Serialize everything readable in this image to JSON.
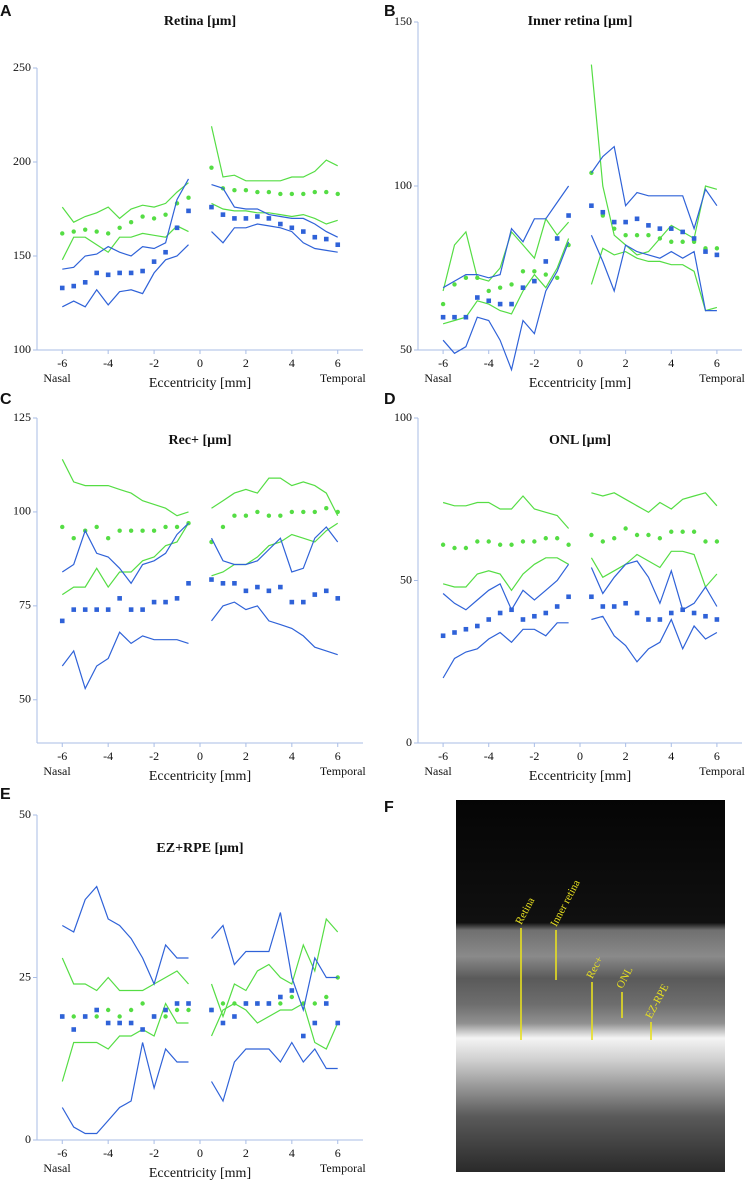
{
  "chart_data": [
    {
      "type": "line",
      "panel_label": "A",
      "title": "Retina [µm]",
      "x_label": "Eccentricity [mm]",
      "left_label": "Nasal",
      "right_label": "Temporal",
      "x": [
        -6,
        -5.5,
        -5,
        -4.5,
        -4,
        -3.5,
        -3,
        -2.5,
        -2,
        -1.5,
        -1,
        -0.5,
        0,
        0.5,
        1,
        1.5,
        2,
        2.5,
        3,
        3.5,
        4,
        4.5,
        5,
        5.5,
        6
      ],
      "xlim": [
        -7.1,
        7.1
      ],
      "xticks": [
        -6,
        -4,
        -2,
        0,
        2,
        4,
        6
      ],
      "ylim": [
        100,
        250
      ],
      "yticks": [
        100,
        150,
        200,
        250
      ],
      "series": [
        {
          "color": "#55dd44",
          "style": "line",
          "values": [
            176,
            168,
            171,
            173,
            176,
            170,
            175,
            177,
            176,
            178,
            184,
            189,
            null,
            219,
            192,
            193,
            190,
            190,
            190,
            190,
            192,
            192,
            195,
            201,
            198
          ]
        },
        {
          "color": "#55dd44",
          "style": "line",
          "values": [
            148,
            160,
            160,
            156,
            152,
            160,
            160,
            162,
            161,
            160,
            166,
            163,
            null,
            178,
            175,
            174,
            174,
            173,
            173,
            172,
            171,
            172,
            170,
            167,
            169
          ]
        },
        {
          "color": "#55dd44",
          "style": "dots",
          "values": [
            162,
            163,
            164,
            163,
            162,
            165,
            168,
            171,
            170,
            172,
            178,
            181,
            null,
            197,
            186,
            185,
            185,
            184,
            184,
            183,
            183,
            183,
            184,
            184,
            183
          ]
        },
        {
          "color": "#2f62d8",
          "style": "line",
          "values": [
            143,
            144,
            150,
            151,
            155,
            152,
            150,
            155,
            154,
            157,
            180,
            191,
            null,
            188,
            186,
            176,
            175,
            175,
            172,
            171,
            170,
            170,
            167,
            163,
            160
          ]
        },
        {
          "color": "#2f62d8",
          "style": "line",
          "values": [
            123,
            126,
            123,
            132,
            124,
            131,
            132,
            130,
            141,
            148,
            150,
            156,
            null,
            163,
            157,
            165,
            165,
            167,
            166,
            165,
            163,
            157,
            154,
            153,
            152
          ]
        },
        {
          "color": "#2f62d8",
          "style": "squares",
          "values": [
            133,
            134,
            136,
            141,
            140,
            141,
            141,
            142,
            147,
            152,
            165,
            174,
            null,
            176,
            172,
            170,
            170,
            171,
            170,
            167,
            165,
            163,
            160,
            159,
            156
          ]
        }
      ]
    },
    {
      "type": "line",
      "panel_label": "B",
      "title": "Inner retina [µm]",
      "x_label": "Eccentricity [mm]",
      "left_label": "Nasal",
      "right_label": "Temporal",
      "x": [
        -6,
        -5.5,
        -5,
        -4.5,
        -4,
        -3.5,
        -3,
        -2.5,
        -2,
        -1.5,
        -1,
        -0.5,
        0,
        0.5,
        1,
        1.5,
        2,
        2.5,
        3,
        3.5,
        4,
        4.5,
        5,
        5.5,
        6
      ],
      "xlim": [
        -7.1,
        7.1
      ],
      "xticks": [
        -6,
        -4,
        -2,
        0,
        2,
        4,
        6
      ],
      "ylim": [
        50,
        150
      ],
      "yticks": [
        50,
        100,
        150
      ],
      "series": [
        {
          "color": "#55dd44",
          "style": "line",
          "values": [
            68,
            82,
            86,
            72,
            71,
            75,
            86,
            82,
            78,
            90,
            85,
            89,
            null,
            137,
            100,
            85,
            82,
            79,
            80,
            84,
            88,
            86,
            84,
            100,
            99
          ]
        },
        {
          "color": "#55dd44",
          "style": "line",
          "values": [
            58,
            59,
            60,
            65,
            64,
            62,
            61,
            68,
            73,
            69,
            75,
            84,
            null,
            70,
            81,
            79,
            80,
            78,
            77,
            77,
            76,
            76,
            74,
            62,
            63
          ]
        },
        {
          "color": "#55dd44",
          "style": "dots",
          "values": [
            64,
            70,
            72,
            72,
            68,
            69,
            70,
            74,
            74,
            73,
            72,
            82,
            null,
            104,
            91,
            87,
            85,
            85,
            85,
            84,
            83,
            83,
            83,
            81,
            81
          ]
        },
        {
          "color": "#2f62d8",
          "style": "line",
          "values": [
            69,
            71,
            73,
            73,
            72,
            73,
            87,
            83,
            90,
            90,
            95,
            100,
            null,
            104,
            109,
            112,
            94,
            98,
            97,
            97,
            97,
            97,
            87,
            99,
            94
          ]
        },
        {
          "color": "#2f62d8",
          "style": "line",
          "values": [
            53,
            49,
            51,
            60,
            59,
            53,
            44,
            59,
            55,
            68,
            74,
            83,
            null,
            85,
            77,
            68,
            82,
            80,
            79,
            78,
            80,
            78,
            80,
            62,
            62
          ]
        },
        {
          "color": "#2f62d8",
          "style": "squares",
          "values": [
            60,
            60,
            60,
            66,
            65,
            64,
            64,
            69,
            71,
            77,
            84,
            91,
            null,
            94,
            92,
            89,
            89,
            90,
            88,
            87,
            87,
            86,
            84,
            80,
            79
          ]
        }
      ]
    },
    {
      "type": "line",
      "panel_label": "C",
      "title": "Rec+ [µm]",
      "x_label": "Eccentricity [mm]",
      "left_label": "Nasal",
      "right_label": "Temporal",
      "x": [
        -6,
        -5.5,
        -5,
        -4.5,
        -4,
        -3.5,
        -3,
        -2.5,
        -2,
        -1.5,
        -1,
        -0.5,
        0,
        0.5,
        1,
        1.5,
        2,
        2.5,
        3,
        3.5,
        4,
        4.5,
        5,
        5.5,
        6
      ],
      "xlim": [
        -7.1,
        7.1
      ],
      "xticks": [
        -6,
        -4,
        -2,
        0,
        2,
        4,
        6
      ],
      "ylim": [
        38.5,
        125
      ],
      "yticks": [
        50,
        75,
        100,
        125
      ],
      "series": [
        {
          "color": "#55dd44",
          "style": "line",
          "values": [
            114,
            108,
            107,
            107,
            107,
            106,
            105,
            103,
            102,
            101,
            99,
            100,
            null,
            101,
            103,
            105,
            106,
            105,
            109,
            109,
            107,
            108,
            107,
            105,
            99
          ]
        },
        {
          "color": "#55dd44",
          "style": "line",
          "values": [
            78,
            80,
            80,
            85,
            80,
            84,
            84,
            87,
            88,
            91,
            92,
            97,
            null,
            83,
            84,
            86,
            86,
            88,
            91,
            92,
            94,
            93,
            92,
            95,
            97
          ]
        },
        {
          "color": "#55dd44",
          "style": "dots",
          "values": [
            96,
            93,
            95,
            96,
            93,
            95,
            95,
            95,
            95,
            96,
            96,
            97,
            null,
            92,
            96,
            99,
            99,
            100,
            99,
            99,
            100,
            100,
            100,
            101,
            100
          ]
        },
        {
          "color": "#2f62d8",
          "style": "line",
          "values": [
            84,
            86,
            95,
            89,
            88,
            85,
            81,
            86,
            87,
            89,
            94,
            97,
            null,
            93,
            87,
            86,
            86,
            87,
            90,
            93,
            84,
            85,
            93,
            96,
            92
          ]
        },
        {
          "color": "#2f62d8",
          "style": "line",
          "values": [
            59,
            63,
            53,
            59,
            61,
            68,
            65,
            67,
            66,
            66,
            66,
            65,
            null,
            71,
            75,
            76,
            74,
            75,
            71,
            70,
            69,
            67,
            64,
            63,
            62
          ]
        },
        {
          "color": "#2f62d8",
          "style": "squares",
          "values": [
            71,
            74,
            74,
            74,
            74,
            77,
            74,
            74,
            76,
            76,
            77,
            81,
            null,
            82,
            81,
            81,
            79,
            80,
            79,
            80,
            76,
            76,
            78,
            79,
            77
          ]
        }
      ]
    },
    {
      "type": "line",
      "panel_label": "D",
      "title": "ONL [µm]",
      "x_label": "Eccentricity [mm]",
      "left_label": "Nasal",
      "right_label": "Temporal",
      "x": [
        -6,
        -5.5,
        -5,
        -4.5,
        -4,
        -3.5,
        -3,
        -2.5,
        -2,
        -1.5,
        -1,
        -0.5,
        0,
        0.5,
        1,
        1.5,
        2,
        2.5,
        3,
        3.5,
        4,
        4.5,
        5,
        5.5,
        6
      ],
      "xlim": [
        -7.1,
        7.1
      ],
      "xticks": [
        -6,
        -4,
        -2,
        0,
        2,
        4,
        6
      ],
      "ylim": [
        0,
        100
      ],
      "yticks": [
        0,
        50,
        100
      ],
      "series": [
        {
          "color": "#55dd44",
          "style": "line",
          "values": [
            74,
            73,
            73,
            74,
            74,
            72,
            72,
            76,
            72,
            71,
            70,
            66,
            null,
            77,
            76,
            77,
            75,
            73,
            71,
            74,
            72,
            75,
            76,
            77,
            73
          ]
        },
        {
          "color": "#55dd44",
          "style": "line",
          "values": [
            49,
            48,
            48,
            52,
            53,
            52,
            47,
            52,
            55,
            57,
            57,
            55,
            null,
            57,
            51,
            53,
            55,
            58,
            56,
            54,
            59,
            59,
            58,
            48,
            52
          ]
        },
        {
          "color": "#55dd44",
          "style": "dots",
          "values": [
            61,
            60,
            60,
            62,
            62,
            61,
            61,
            62,
            62,
            63,
            63,
            61,
            null,
            64,
            62,
            63,
            66,
            64,
            64,
            63,
            65,
            65,
            65,
            62,
            62
          ]
        },
        {
          "color": "#2f62d8",
          "style": "line",
          "values": [
            46,
            43,
            41,
            44,
            47,
            49,
            41,
            47,
            44,
            47,
            50,
            55,
            null,
            54,
            46,
            51,
            55,
            56,
            51,
            43,
            53,
            41,
            43,
            48,
            42
          ]
        },
        {
          "color": "#2f62d8",
          "style": "line",
          "values": [
            20,
            26,
            28,
            29,
            32,
            34,
            31,
            35,
            35,
            33,
            37,
            37,
            null,
            38,
            39,
            33,
            30,
            25,
            29,
            31,
            38,
            29,
            36,
            32,
            34
          ]
        },
        {
          "color": "#2f62d8",
          "style": "squares",
          "values": [
            33,
            34,
            35,
            36,
            38,
            40,
            41,
            38,
            39,
            40,
            42,
            45,
            null,
            45,
            42,
            42,
            43,
            40,
            38,
            38,
            40,
            41,
            40,
            39,
            38
          ]
        }
      ]
    },
    {
      "type": "line",
      "panel_label": "E",
      "title": "EZ+RPE [µm]",
      "x_label": "Eccentricity [mm]",
      "left_label": "Nasal",
      "right_label": "Temporal",
      "x": [
        -6,
        -5.5,
        -5,
        -4.5,
        -4,
        -3.5,
        -3,
        -2.5,
        -2,
        -1.5,
        -1,
        -0.5,
        0,
        0.5,
        1,
        1.5,
        2,
        2.5,
        3,
        3.5,
        4,
        4.5,
        5,
        5.5,
        6
      ],
      "xlim": [
        -7.1,
        7.1
      ],
      "xticks": [
        -6,
        -4,
        -2,
        0,
        2,
        4,
        6
      ],
      "ylim": [
        0,
        50
      ],
      "yticks": [
        0,
        25,
        50
      ],
      "series": [
        {
          "color": "#55dd44",
          "style": "line",
          "values": [
            28,
            24,
            24,
            23,
            25,
            23,
            23,
            23,
            24,
            25,
            26,
            24,
            null,
            24,
            19,
            24,
            23,
            26,
            27,
            25,
            24,
            30,
            26,
            34,
            32
          ]
        },
        {
          "color": "#55dd44",
          "style": "line",
          "values": [
            9,
            15,
            15,
            15,
            14,
            16,
            16,
            17,
            16,
            21,
            18,
            18,
            null,
            16,
            20,
            21,
            20,
            18,
            19,
            20,
            20,
            21,
            15,
            14,
            18
          ]
        },
        {
          "color": "#55dd44",
          "style": "dots",
          "values": [
            19,
            19,
            19,
            19,
            20,
            19,
            20,
            21,
            19,
            19,
            20,
            20,
            null,
            20,
            21,
            21,
            21,
            21,
            21,
            21,
            22,
            21,
            21,
            22,
            25
          ]
        },
        {
          "color": "#2f62d8",
          "style": "line",
          "values": [
            33,
            32,
            37,
            39,
            34,
            33,
            31,
            28,
            24,
            30,
            28,
            28,
            null,
            31,
            33,
            27,
            29,
            29,
            29,
            35,
            25,
            20,
            28,
            25,
            25
          ]
        },
        {
          "color": "#2f62d8",
          "style": "line",
          "values": [
            5,
            2,
            1,
            1,
            3,
            5,
            6,
            15,
            8,
            14,
            12,
            12,
            null,
            9,
            6,
            12,
            14,
            14,
            14,
            12,
            15,
            12,
            14,
            11,
            11
          ]
        },
        {
          "color": "#2f62d8",
          "style": "squares",
          "values": [
            19,
            17,
            19,
            20,
            18,
            18,
            18,
            17,
            19,
            20,
            21,
            21,
            null,
            20,
            18,
            19,
            21,
            21,
            21,
            22,
            23,
            16,
            18,
            21,
            18
          ]
        }
      ]
    }
  ],
  "image_panel": {
    "panel_label": "F",
    "labels": [
      "Retina",
      "Inner retina",
      "Rec+",
      "ONL",
      "EZ-RPE"
    ]
  }
}
